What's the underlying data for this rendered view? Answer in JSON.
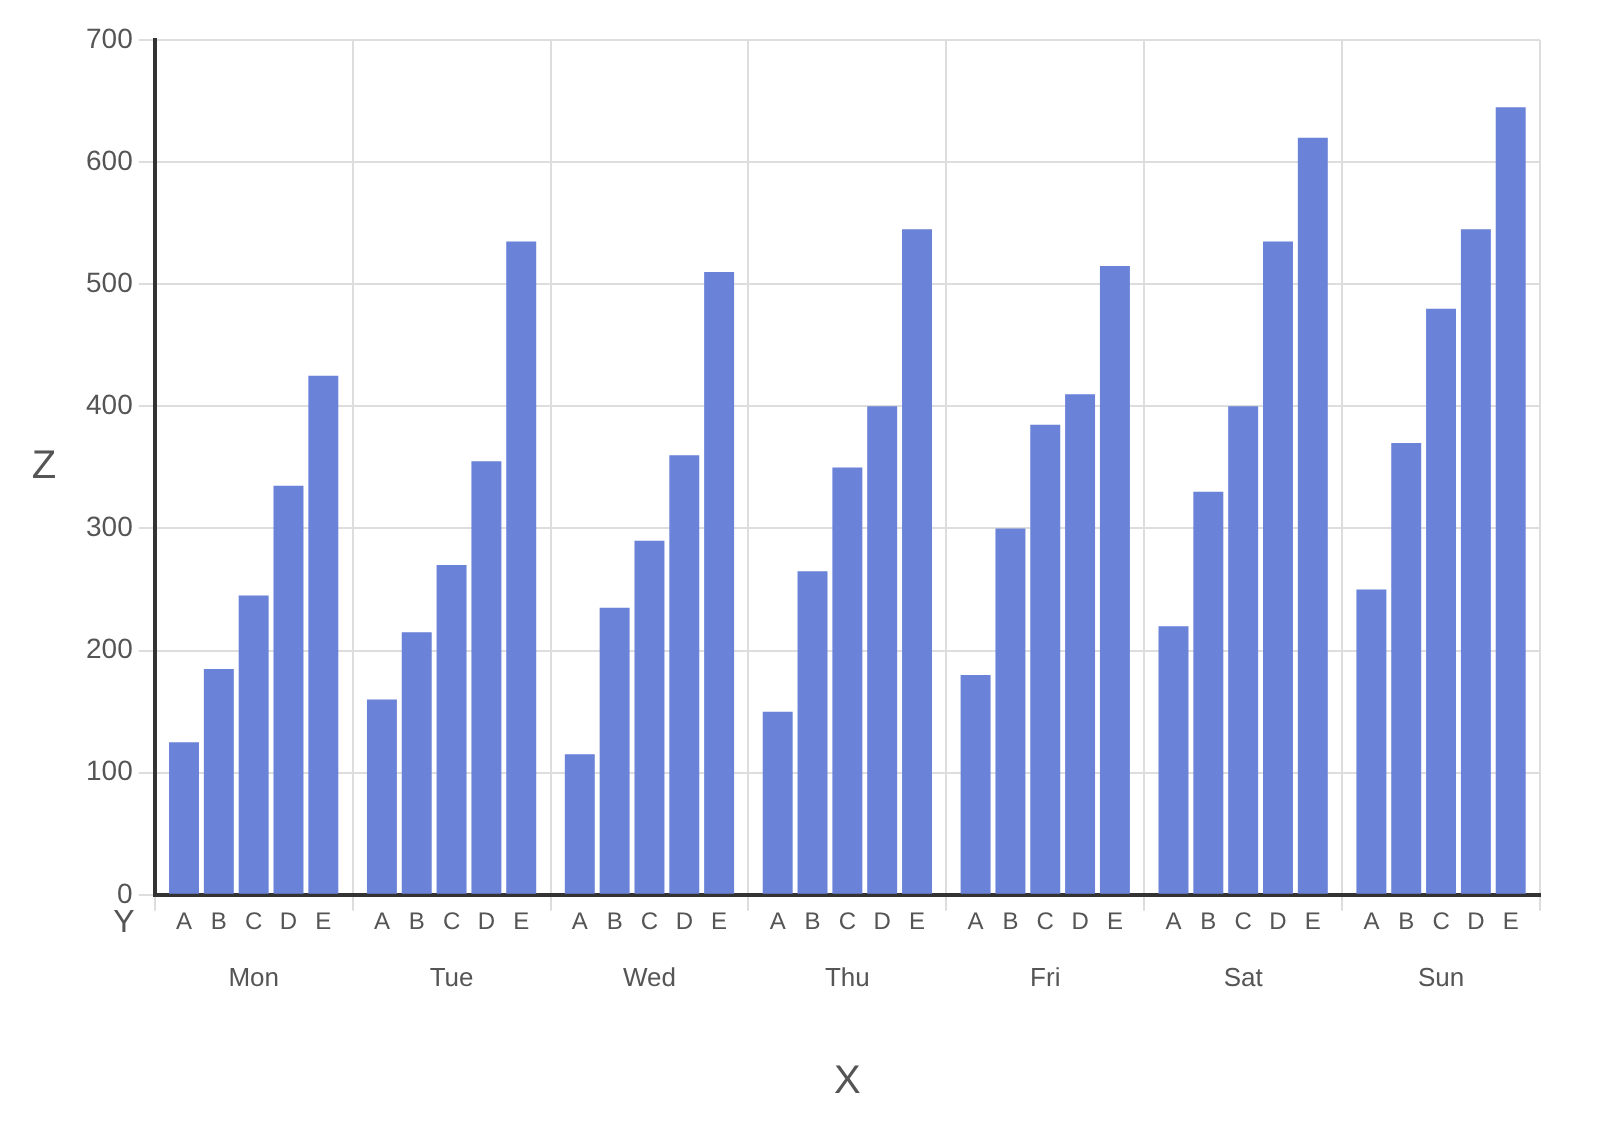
{
  "chart_data": {
    "type": "bar",
    "xlabel": "X",
    "ylabel": "Z",
    "legend_title": "Y",
    "categories": [
      "Mon",
      "Tue",
      "Wed",
      "Thu",
      "Fri",
      "Sat",
      "Sun"
    ],
    "series": [
      {
        "name": "A",
        "color": "#6a82d8",
        "values": [
          125,
          160,
          115,
          150,
          180,
          220,
          250
        ]
      },
      {
        "name": "B",
        "color": "#6a82d8",
        "values": [
          185,
          215,
          235,
          265,
          300,
          330,
          370
        ]
      },
      {
        "name": "C",
        "color": "#6a82d8",
        "values": [
          245,
          270,
          290,
          350,
          385,
          400,
          480
        ]
      },
      {
        "name": "D",
        "color": "#6a82d8",
        "values": [
          335,
          355,
          360,
          400,
          410,
          535,
          545
        ]
      },
      {
        "name": "E",
        "color": "#6a82d8",
        "values": [
          425,
          535,
          510,
          545,
          515,
          620,
          645
        ]
      }
    ],
    "ylim": [
      0,
      700
    ],
    "yticks": [
      0,
      100,
      200,
      300,
      400,
      500,
      600,
      700
    ],
    "grid": true
  }
}
